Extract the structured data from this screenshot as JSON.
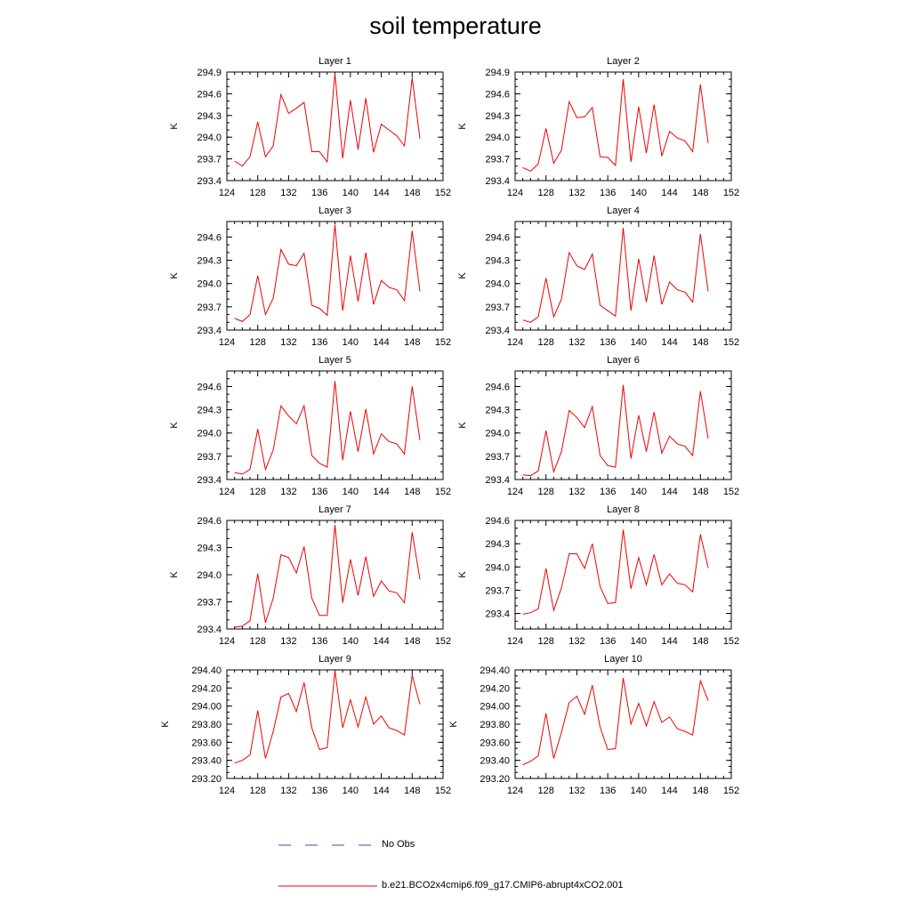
{
  "title": "soil temperature",
  "colors": {
    "model": "#ee0000",
    "obs": "#4a4aa8",
    "axis": "#000000"
  },
  "legend": {
    "obs_label": "No Obs",
    "model_label": "b.e21.BCO2x4cmip6.f09_g17.CMIP6-abrupt4xCO2.001"
  },
  "chart_data": [
    {
      "type": "line",
      "title": "Layer 1",
      "xlabel": "",
      "ylabel": "K",
      "xlim": [
        124,
        152
      ],
      "xticks": [
        124,
        128,
        132,
        136,
        140,
        144,
        148,
        152
      ],
      "ylim": [
        293.4,
        294.9
      ],
      "yticks": [
        293.4,
        293.7,
        294.0,
        294.3,
        294.6,
        294.9
      ],
      "ydecimals": 1,
      "x": [
        125,
        126,
        127,
        128,
        129,
        130,
        131,
        132,
        133,
        134,
        135,
        136,
        137,
        138,
        139,
        140,
        141,
        142,
        143,
        144,
        145,
        146,
        147,
        148,
        149
      ],
      "series": [
        {
          "name": "b.e21.BCO2x4cmip6.f09_g17.CMIP6-abrupt4xCO2.001",
          "values": [
            293.67,
            293.6,
            293.73,
            294.21,
            293.73,
            293.88,
            294.59,
            294.33,
            294.4,
            294.48,
            293.8,
            293.8,
            293.66,
            294.88,
            293.71,
            294.51,
            293.83,
            294.54,
            293.79,
            294.18,
            294.1,
            294.02,
            293.88,
            294.82,
            293.98
          ]
        }
      ]
    },
    {
      "type": "line",
      "title": "Layer 2",
      "xlabel": "",
      "ylabel": "K",
      "xlim": [
        124,
        152
      ],
      "xticks": [
        124,
        128,
        132,
        136,
        140,
        144,
        148,
        152
      ],
      "ylim": [
        293.4,
        294.9
      ],
      "yticks": [
        293.4,
        293.7,
        294.0,
        294.3,
        294.6,
        294.9
      ],
      "ydecimals": 1,
      "x": [
        125,
        126,
        127,
        128,
        129,
        130,
        131,
        132,
        133,
        134,
        135,
        136,
        137,
        138,
        139,
        140,
        141,
        142,
        143,
        144,
        145,
        146,
        147,
        148,
        149
      ],
      "series": [
        {
          "name": "b.e21.BCO2x4cmip6.f09_g17.CMIP6-abrupt4xCO2.001",
          "values": [
            293.58,
            293.53,
            293.63,
            294.12,
            293.64,
            293.82,
            294.49,
            294.27,
            294.28,
            294.41,
            293.73,
            293.72,
            293.61,
            294.8,
            293.66,
            294.42,
            293.78,
            294.45,
            293.74,
            294.08,
            293.99,
            293.95,
            293.8,
            294.73,
            293.92
          ]
        }
      ]
    },
    {
      "type": "line",
      "title": "Layer 3",
      "xlabel": "",
      "ylabel": "K",
      "xlim": [
        124,
        152
      ],
      "xticks": [
        124,
        128,
        132,
        136,
        140,
        144,
        148,
        152
      ],
      "ylim": [
        293.4,
        294.8
      ],
      "yticks": [
        293.4,
        293.7,
        294.0,
        294.3,
        294.6
      ],
      "ydecimals": 1,
      "x": [
        125,
        126,
        127,
        128,
        129,
        130,
        131,
        132,
        133,
        134,
        135,
        136,
        137,
        138,
        139,
        140,
        141,
        142,
        143,
        144,
        145,
        146,
        147,
        148,
        149
      ],
      "series": [
        {
          "name": "b.e21.BCO2x4cmip6.f09_g17.CMIP6-abrupt4xCO2.001",
          "values": [
            293.55,
            293.51,
            293.6,
            294.1,
            293.6,
            293.81,
            294.44,
            294.25,
            294.23,
            294.39,
            293.72,
            293.68,
            293.59,
            294.76,
            293.65,
            294.36,
            293.77,
            294.4,
            293.73,
            294.04,
            293.95,
            293.92,
            293.78,
            294.68,
            293.9
          ]
        }
      ]
    },
    {
      "type": "line",
      "title": "Layer 4",
      "xlabel": "",
      "ylabel": "K",
      "xlim": [
        124,
        152
      ],
      "xticks": [
        124,
        128,
        132,
        136,
        140,
        144,
        148,
        152
      ],
      "ylim": [
        293.4,
        294.8
      ],
      "yticks": [
        293.4,
        293.7,
        294.0,
        294.3,
        294.6
      ],
      "ydecimals": 1,
      "x": [
        125,
        126,
        127,
        128,
        129,
        130,
        131,
        132,
        133,
        134,
        135,
        136,
        137,
        138,
        139,
        140,
        141,
        142,
        143,
        144,
        145,
        146,
        147,
        148,
        149
      ],
      "series": [
        {
          "name": "b.e21.BCO2x4cmip6.f09_g17.CMIP6-abrupt4xCO2.001",
          "values": [
            293.53,
            293.5,
            293.57,
            294.07,
            293.57,
            293.8,
            294.4,
            294.23,
            294.18,
            294.38,
            293.72,
            293.65,
            293.58,
            294.72,
            293.65,
            294.32,
            293.76,
            294.36,
            293.73,
            294.02,
            293.92,
            293.89,
            293.76,
            294.64,
            293.9
          ]
        }
      ]
    },
    {
      "type": "line",
      "title": "Layer 5",
      "xlabel": "",
      "ylabel": "K",
      "xlim": [
        124,
        152
      ],
      "xticks": [
        124,
        128,
        132,
        136,
        140,
        144,
        148,
        152
      ],
      "ylim": [
        293.4,
        294.8
      ],
      "yticks": [
        293.4,
        293.7,
        294.0,
        294.3,
        294.6
      ],
      "ydecimals": 1,
      "x": [
        125,
        126,
        127,
        128,
        129,
        130,
        131,
        132,
        133,
        134,
        135,
        136,
        137,
        138,
        139,
        140,
        141,
        142,
        143,
        144,
        145,
        146,
        147,
        148,
        149
      ],
      "series": [
        {
          "name": "b.e21.BCO2x4cmip6.f09_g17.CMIP6-abrupt4xCO2.001",
          "values": [
            293.49,
            293.47,
            293.53,
            294.05,
            293.53,
            293.78,
            294.35,
            294.22,
            294.12,
            294.35,
            293.71,
            293.61,
            293.56,
            294.67,
            293.65,
            294.28,
            293.76,
            294.31,
            293.73,
            293.99,
            293.89,
            293.86,
            293.73,
            294.6,
            293.91
          ]
        }
      ]
    },
    {
      "type": "line",
      "title": "Layer 6",
      "xlabel": "",
      "ylabel": "K",
      "xlim": [
        124,
        152
      ],
      "xticks": [
        124,
        128,
        132,
        136,
        140,
        144,
        148,
        152
      ],
      "ylim": [
        293.4,
        294.8
      ],
      "yticks": [
        293.4,
        293.7,
        294.0,
        294.3,
        294.6
      ],
      "ydecimals": 1,
      "x": [
        125,
        126,
        127,
        128,
        129,
        130,
        131,
        132,
        133,
        134,
        135,
        136,
        137,
        138,
        139,
        140,
        141,
        142,
        143,
        144,
        145,
        146,
        147,
        148,
        149
      ],
      "series": [
        {
          "name": "b.e21.BCO2x4cmip6.f09_g17.CMIP6-abrupt4xCO2.001",
          "values": [
            293.46,
            293.45,
            293.51,
            294.03,
            293.5,
            293.76,
            294.29,
            294.2,
            294.07,
            294.34,
            293.71,
            293.58,
            293.56,
            294.62,
            293.67,
            294.23,
            293.76,
            294.27,
            293.74,
            293.96,
            293.86,
            293.83,
            293.71,
            294.54,
            293.93
          ]
        }
      ]
    },
    {
      "type": "line",
      "title": "Layer 7",
      "xlabel": "",
      "ylabel": "K",
      "xlim": [
        124,
        152
      ],
      "xticks": [
        124,
        128,
        132,
        136,
        140,
        144,
        148,
        152
      ],
      "ylim": [
        293.4,
        294.6
      ],
      "yticks": [
        293.4,
        293.7,
        294.0,
        294.3,
        294.6
      ],
      "ydecimals": 1,
      "x": [
        125,
        126,
        127,
        128,
        129,
        130,
        131,
        132,
        133,
        134,
        135,
        136,
        137,
        138,
        139,
        140,
        141,
        142,
        143,
        144,
        145,
        146,
        147,
        148,
        149
      ],
      "series": [
        {
          "name": "b.e21.BCO2x4cmip6.f09_g17.CMIP6-abrupt4xCO2.001",
          "values": [
            293.42,
            293.43,
            293.49,
            294.01,
            293.47,
            293.74,
            294.22,
            294.19,
            294.02,
            294.31,
            293.74,
            293.55,
            293.55,
            294.55,
            293.69,
            294.17,
            293.77,
            294.2,
            293.76,
            293.93,
            293.82,
            293.8,
            293.69,
            294.47,
            293.95
          ]
        }
      ]
    },
    {
      "type": "line",
      "title": "Layer 8",
      "xlabel": "",
      "ylabel": "K",
      "xlim": [
        124,
        152
      ],
      "xticks": [
        124,
        128,
        132,
        136,
        140,
        144,
        148,
        152
      ],
      "ylim": [
        293.2,
        294.6
      ],
      "yticks": [
        293.4,
        293.7,
        294.0,
        294.3,
        294.6
      ],
      "ydecimals": 1,
      "x": [
        125,
        126,
        127,
        128,
        129,
        130,
        131,
        132,
        133,
        134,
        135,
        136,
        137,
        138,
        139,
        140,
        141,
        142,
        143,
        144,
        145,
        146,
        147,
        148,
        149
      ],
      "series": [
        {
          "name": "b.e21.BCO2x4cmip6.f09_g17.CMIP6-abrupt4xCO2.001",
          "values": [
            293.39,
            293.41,
            293.46,
            293.98,
            293.44,
            293.73,
            294.17,
            294.17,
            293.98,
            294.3,
            293.75,
            293.53,
            293.54,
            294.48,
            293.72,
            294.12,
            293.77,
            294.16,
            293.77,
            293.91,
            293.79,
            293.77,
            293.68,
            294.42,
            293.99
          ]
        }
      ]
    },
    {
      "type": "line",
      "title": "Layer 9",
      "xlabel": "",
      "ylabel": "K",
      "xlim": [
        124,
        152
      ],
      "xticks": [
        124,
        128,
        132,
        136,
        140,
        144,
        148,
        152
      ],
      "ylim": [
        293.2,
        294.4
      ],
      "yticks": [
        293.2,
        293.4,
        293.6,
        293.8,
        294.0,
        294.2,
        294.4
      ],
      "ydecimals": 2,
      "x": [
        125,
        126,
        127,
        128,
        129,
        130,
        131,
        132,
        133,
        134,
        135,
        136,
        137,
        138,
        139,
        140,
        141,
        142,
        143,
        144,
        145,
        146,
        147,
        148,
        149
      ],
      "series": [
        {
          "name": "b.e21.BCO2x4cmip6.f09_g17.CMIP6-abrupt4xCO2.001",
          "values": [
            293.37,
            293.4,
            293.46,
            293.95,
            293.42,
            293.72,
            294.1,
            294.14,
            293.94,
            294.26,
            293.76,
            293.52,
            293.54,
            294.39,
            293.76,
            294.07,
            293.77,
            294.1,
            293.8,
            293.89,
            293.76,
            293.73,
            293.68,
            294.34,
            294.02
          ]
        }
      ]
    },
    {
      "type": "line",
      "title": "Layer 10",
      "xlabel": "",
      "ylabel": "K",
      "xlim": [
        124,
        152
      ],
      "xticks": [
        124,
        128,
        132,
        136,
        140,
        144,
        148,
        152
      ],
      "ylim": [
        293.2,
        294.4
      ],
      "yticks": [
        293.2,
        293.4,
        293.6,
        293.8,
        294.0,
        294.2,
        294.4
      ],
      "ydecimals": 2,
      "x": [
        125,
        126,
        127,
        128,
        129,
        130,
        131,
        132,
        133,
        134,
        135,
        136,
        137,
        138,
        139,
        140,
        141,
        142,
        143,
        144,
        145,
        146,
        147,
        148,
        149
      ],
      "series": [
        {
          "name": "b.e21.BCO2x4cmip6.f09_g17.CMIP6-abrupt4xCO2.001",
          "values": [
            293.35,
            293.39,
            293.45,
            293.92,
            293.42,
            293.71,
            294.04,
            294.11,
            293.91,
            294.23,
            293.77,
            293.52,
            293.53,
            294.31,
            293.8,
            294.03,
            293.78,
            294.05,
            293.82,
            293.88,
            293.75,
            293.72,
            293.68,
            294.28,
            294.06
          ]
        }
      ]
    }
  ]
}
